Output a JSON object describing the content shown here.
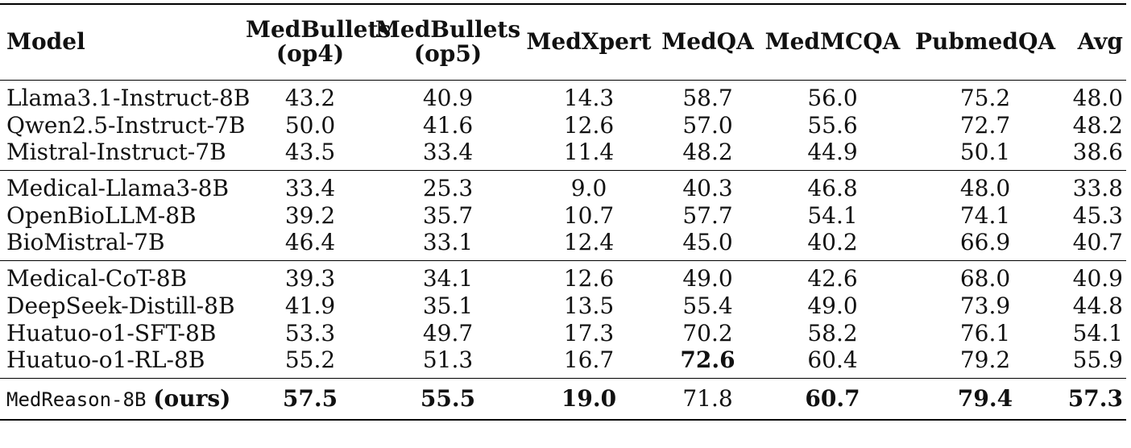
{
  "table": {
    "columns": [
      "Model",
      "MedBullets\n(op4)",
      "MedBullets\n(op5)",
      "MedXpert",
      "MedQA",
      "MedMCQA",
      "PubmedQA",
      "Avg"
    ],
    "groups": [
      [
        {
          "model": "Llama3.1-Instruct-8B",
          "values": [
            "43.2",
            "40.9",
            "14.3",
            "58.7",
            "56.0",
            "75.2",
            "48.0"
          ],
          "bold": []
        },
        {
          "model": "Qwen2.5-Instruct-7B",
          "values": [
            "50.0",
            "41.6",
            "12.6",
            "57.0",
            "55.6",
            "72.7",
            "48.2"
          ],
          "bold": []
        },
        {
          "model": "Mistral-Instruct-7B",
          "values": [
            "43.5",
            "33.4",
            "11.4",
            "48.2",
            "44.9",
            "50.1",
            "38.6"
          ],
          "bold": []
        }
      ],
      [
        {
          "model": "Medical-Llama3-8B",
          "values": [
            "33.4",
            "25.3",
            "9.0",
            "40.3",
            "46.8",
            "48.0",
            "33.8"
          ],
          "bold": []
        },
        {
          "model": "OpenBioLLM-8B",
          "values": [
            "39.2",
            "35.7",
            "10.7",
            "57.7",
            "54.1",
            "74.1",
            "45.3"
          ],
          "bold": []
        },
        {
          "model": "BioMistral-7B",
          "values": [
            "46.4",
            "33.1",
            "12.4",
            "45.0",
            "40.2",
            "66.9",
            "40.7"
          ],
          "bold": []
        }
      ],
      [
        {
          "model": "Medical-CoT-8B",
          "values": [
            "39.3",
            "34.1",
            "12.6",
            "49.0",
            "42.6",
            "68.0",
            "40.9"
          ],
          "bold": []
        },
        {
          "model": "DeepSeek-Distill-8B",
          "values": [
            "41.9",
            "35.1",
            "13.5",
            "55.4",
            "49.0",
            "73.9",
            "44.8"
          ],
          "bold": []
        },
        {
          "model": "Huatuo-o1-SFT-8B",
          "values": [
            "53.3",
            "49.7",
            "17.3",
            "70.2",
            "58.2",
            "76.1",
            "54.1"
          ],
          "bold": []
        },
        {
          "model": "Huatuo-o1-RL-8B",
          "values": [
            "55.2",
            "51.3",
            "16.7",
            "72.6",
            "60.4",
            "79.2",
            "55.9"
          ],
          "bold": [
            3
          ]
        }
      ]
    ],
    "ours": {
      "model_name": "MedReason-8B",
      "model_suffix": "(ours)",
      "values": [
        "57.5",
        "55.5",
        "19.0",
        "71.8",
        "60.7",
        "79.4",
        "57.3"
      ],
      "bold": [
        0,
        1,
        2,
        4,
        5,
        6
      ]
    }
  }
}
